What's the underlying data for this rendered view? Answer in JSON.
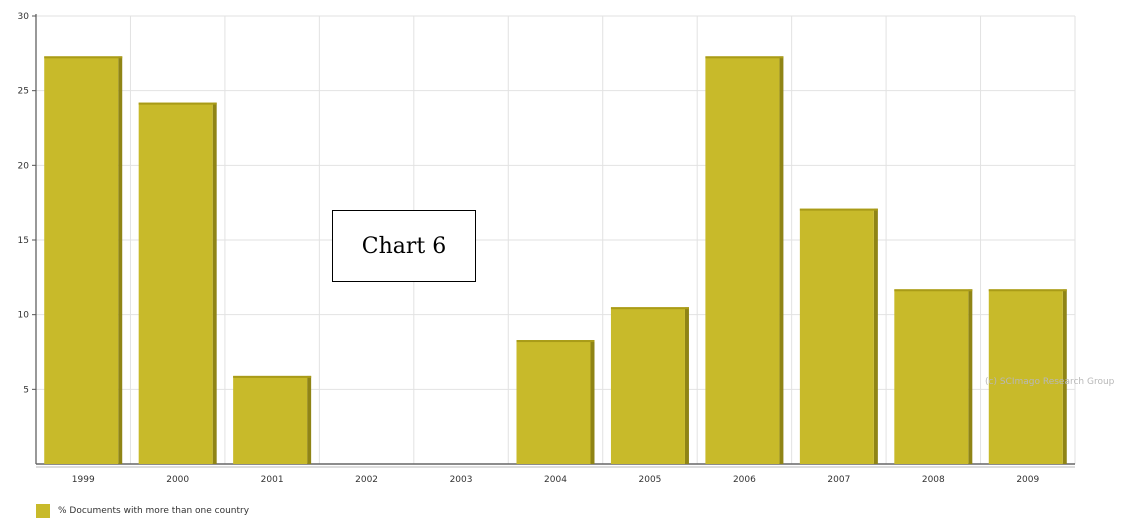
{
  "chart_data": {
    "type": "bar",
    "categories": [
      "1999",
      "2000",
      "2001",
      "2002",
      "2003",
      "2004",
      "2005",
      "2006",
      "2007",
      "2008",
      "2009"
    ],
    "series": [
      {
        "name": "% Documents with more than one country",
        "values": [
          27.3,
          24.2,
          5.9,
          0,
          0,
          8.3,
          10.5,
          27.3,
          17.1,
          11.7,
          11.7
        ]
      }
    ],
    "yticks": [
      5,
      10,
      15,
      20,
      25,
      30
    ],
    "ylim": [
      0,
      30
    ],
    "grid": true,
    "legend_position": "bottom-left",
    "watermark": "(c) SCImago Research Group",
    "bar_color": "#c8ba2a",
    "bar_shade_color": "#8f8415"
  },
  "overlay_label": "Chart 6"
}
